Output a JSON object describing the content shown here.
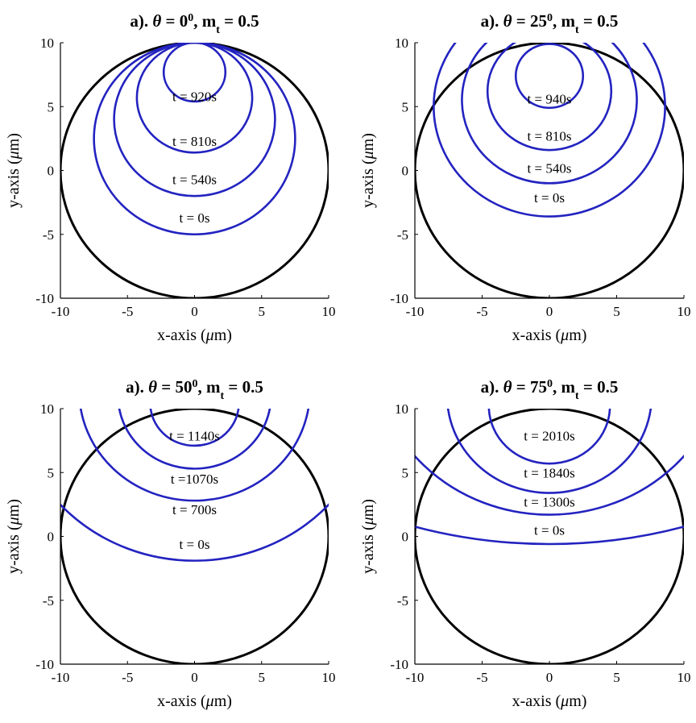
{
  "colors": {
    "domain": "#000000",
    "contour": "#2323c0",
    "axis": "#000000"
  },
  "chart_data": [
    {
      "type": "line",
      "title": {
        "prefix": "a). ",
        "theta_symbol": "θ",
        "eq1": " = ",
        "angle": "0",
        "sup": "0",
        "sep": ", m",
        "sub": "t",
        "tail": " = 0.5"
      },
      "xlabel": {
        "pre": "x-axis (",
        "mu": "μ",
        "post": "m)"
      },
      "ylabel": {
        "pre": "y-axis (",
        "mu": "μ",
        "post": "m)"
      },
      "xlim": [
        -10,
        10
      ],
      "ylim": [
        -10,
        10
      ],
      "xticks": [
        "-10",
        "-5",
        "0",
        "5",
        "10"
      ],
      "yticks": [
        "-10",
        "-5",
        "0",
        "5",
        "10"
      ],
      "domain_circle": {
        "cx": 0,
        "cy": 0,
        "r": 10
      },
      "series": [
        {
          "label": "t = 0s",
          "cx": 0,
          "cy": 2.5,
          "r": 7.5,
          "label_at": [
            0,
            -3.7
          ]
        },
        {
          "label": "t = 540s",
          "cx": 0,
          "cy": 4.0,
          "r": 6.0,
          "label_at": [
            0,
            -0.7
          ]
        },
        {
          "label": "t = 810s",
          "cx": 0,
          "cy": 5.7,
          "r": 4.3,
          "label_at": [
            0,
            2.3
          ]
        },
        {
          "label": "t = 920s",
          "cx": 0,
          "cy": 7.7,
          "r": 2.3,
          "label_at": [
            0,
            5.8
          ]
        }
      ]
    },
    {
      "type": "line",
      "title": {
        "prefix": "a). ",
        "theta_symbol": "θ",
        "eq1": " = ",
        "angle": "25",
        "sup": "0",
        "sep": ", m",
        "sub": "t",
        "tail": " = 0.5"
      },
      "xlabel": {
        "pre": "x-axis (",
        "mu": "μ",
        "post": "m)"
      },
      "ylabel": {
        "pre": "y-axis (",
        "mu": "μ",
        "post": "m)"
      },
      "xlim": [
        -10,
        10
      ],
      "ylim": [
        -10,
        10
      ],
      "xticks": [
        "-10",
        "-5",
        "0",
        "5",
        "10"
      ],
      "yticks": [
        "-10",
        "-5",
        "0",
        "5",
        "10"
      ],
      "domain_circle": {
        "cx": 0,
        "cy": 0,
        "r": 10
      },
      "series": [
        {
          "label": "t = 0s",
          "cx": 0,
          "cy": 5.0,
          "r": 8.6,
          "label_at": [
            0,
            -2.1
          ]
        },
        {
          "label": "t = 540s",
          "cx": 0,
          "cy": 5.5,
          "r": 6.5,
          "label_at": [
            0,
            0.2
          ]
        },
        {
          "label": "t = 810s",
          "cx": 0,
          "cy": 6.2,
          "r": 4.6,
          "label_at": [
            0,
            2.7
          ]
        },
        {
          "label": "t = 940s",
          "cx": 0,
          "cy": 7.4,
          "r": 2.5,
          "label_at": [
            0,
            5.6
          ]
        }
      ]
    },
    {
      "type": "line",
      "title": {
        "prefix": "a). ",
        "theta_symbol": "θ",
        "eq1": " = ",
        "angle": "50",
        "sup": "0",
        "sep": ", m",
        "sub": "t",
        "tail": " = 0.5"
      },
      "xlabel": {
        "pre": "x-axis (",
        "mu": "μ",
        "post": "m)"
      },
      "ylabel": {
        "pre": "y-axis (",
        "mu": "μ",
        "post": "m)"
      },
      "xlim": [
        -10,
        10
      ],
      "ylim": [
        -10,
        10
      ],
      "xticks": [
        "-10",
        "-5",
        "0",
        "5",
        "10"
      ],
      "yticks": [
        "-10",
        "-5",
        "0",
        "5",
        "10"
      ],
      "domain_circle": {
        "cx": 0,
        "cy": 0,
        "r": 10
      },
      "series": [
        {
          "label": "t = 0s",
          "cx": 0,
          "cy": 11.7,
          "r": 13.6,
          "label_at": [
            0,
            -0.6
          ]
        },
        {
          "label": "t = 700s",
          "cx": 0,
          "cy": 11.4,
          "r": 8.6,
          "label_at": [
            0,
            2.1
          ]
        },
        {
          "label": "t =1070s",
          "cx": 0,
          "cy": 11.0,
          "r": 5.7,
          "label_at": [
            0,
            4.5
          ]
        },
        {
          "label": "t = 1140s",
          "cx": 0,
          "cy": 10.4,
          "r": 3.3,
          "label_at": [
            0,
            7.9
          ]
        }
      ]
    },
    {
      "type": "line",
      "title": {
        "prefix": "a). ",
        "theta_symbol": "θ",
        "eq1": " = ",
        "angle": "75",
        "sup": "0",
        "sep": ", m",
        "sub": "t",
        "tail": " = 0.5"
      },
      "xlabel": {
        "pre": "x-axis (",
        "mu": "μ",
        "post": "m)"
      },
      "ylabel": {
        "pre": "y-axis (",
        "mu": "μ",
        "post": "m)"
      },
      "xlim": [
        -10,
        10
      ],
      "ylim": [
        -10,
        10
      ],
      "xticks": [
        "-10",
        "-5",
        "0",
        "5",
        "10"
      ],
      "yticks": [
        "-10",
        "-5",
        "0",
        "5",
        "10"
      ],
      "domain_circle": {
        "cx": 0,
        "cy": 0,
        "r": 10
      },
      "series": [
        {
          "label": "t = 0s",
          "cx": 0,
          "cy": 36.7,
          "r": 37.3,
          "label_at": [
            0,
            0.5
          ]
        },
        {
          "label": "t = 1300s",
          "cx": 0,
          "cy": 14.9,
          "r": 13.2,
          "label_at": [
            0,
            2.7
          ]
        },
        {
          "label": "t = 1840s",
          "cx": 0,
          "cy": 11.0,
          "r": 7.6,
          "label_at": [
            0,
            5.0
          ]
        },
        {
          "label": "t = 2010s",
          "cx": 0,
          "cy": 10.2,
          "r": 4.5,
          "label_at": [
            0,
            7.9
          ]
        }
      ]
    }
  ]
}
